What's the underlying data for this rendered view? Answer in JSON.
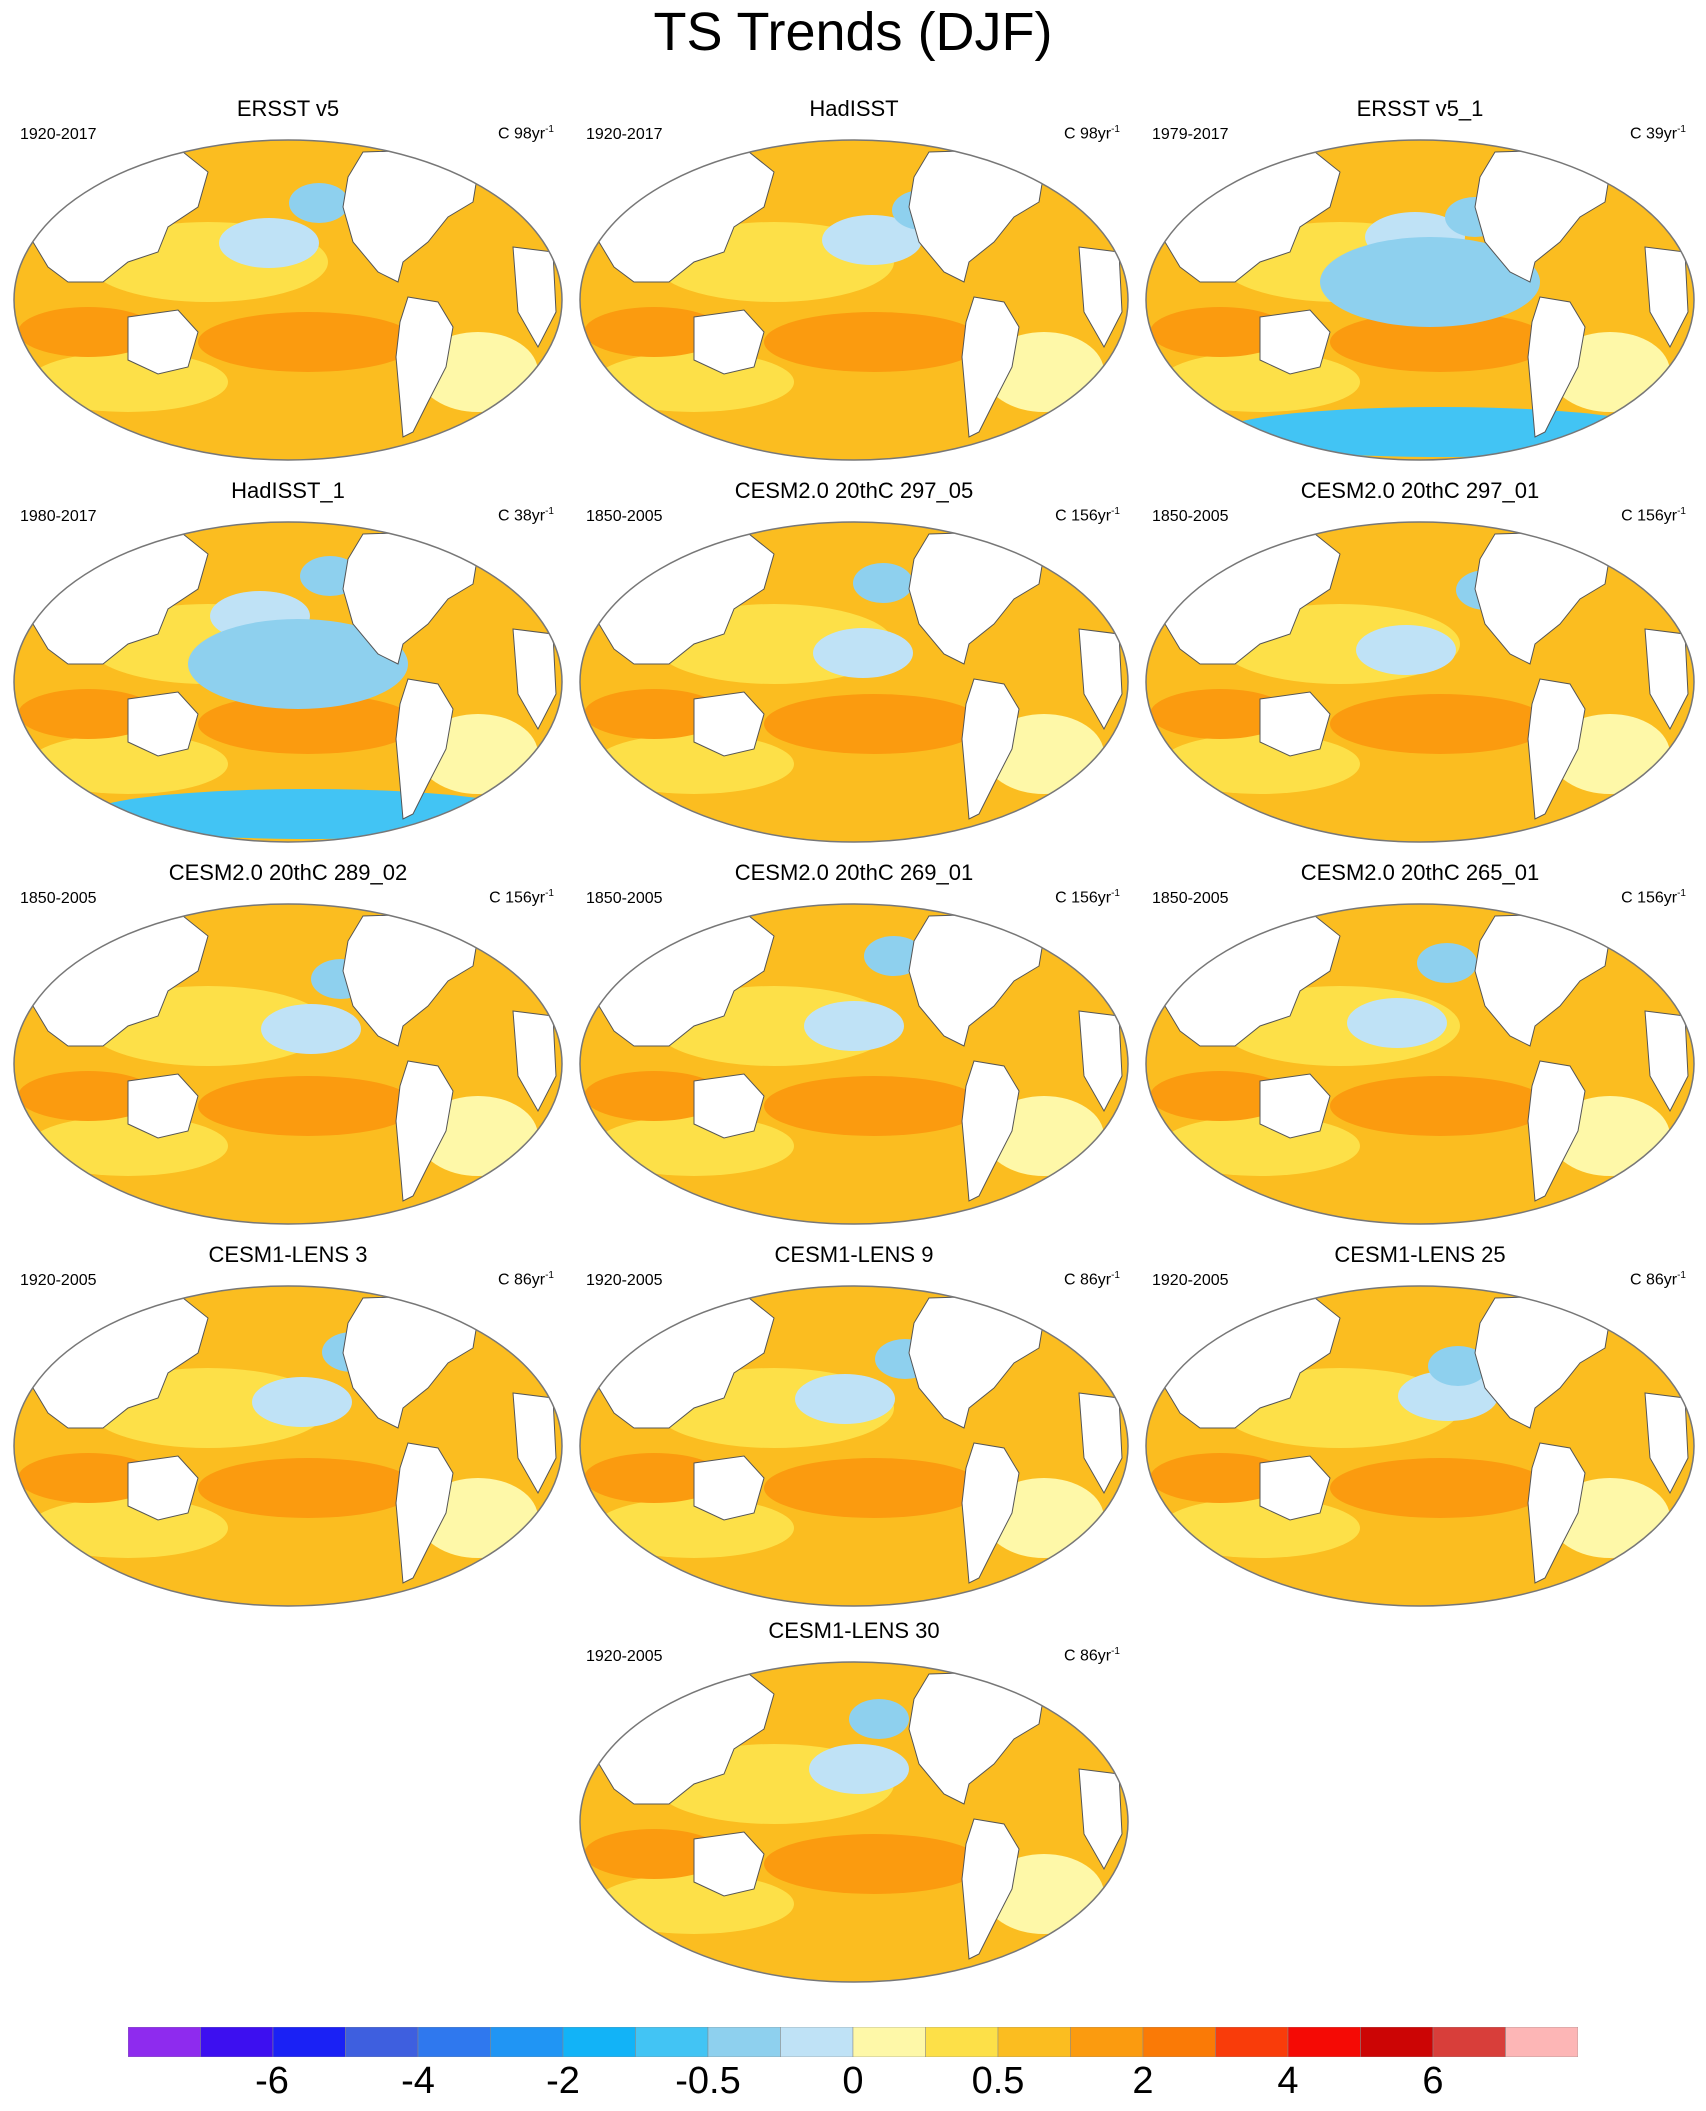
{
  "title": "TS Trends (DJF)",
  "panels": [
    {
      "title": "ERSST v5",
      "period": "1920-2017",
      "units": "C 98yr",
      "exp": "-1"
    },
    {
      "title": "HadISST",
      "period": "1920-2017",
      "units": "C 98yr",
      "exp": "-1"
    },
    {
      "title": "ERSST v5_1",
      "period": "1979-2017",
      "units": "C 39yr",
      "exp": "-1"
    },
    {
      "title": "HadISST_1",
      "period": "1980-2017",
      "units": "C 38yr",
      "exp": "-1"
    },
    {
      "title": "CESM2.0 20thC 297_05",
      "period": "1850-2005",
      "units": "C 156yr",
      "exp": "-1"
    },
    {
      "title": "CESM2.0 20thC 297_01",
      "period": "1850-2005",
      "units": "C 156yr",
      "exp": "-1"
    },
    {
      "title": "CESM2.0 20thC 289_02",
      "period": "1850-2005",
      "units": "C 156yr",
      "exp": "-1"
    },
    {
      "title": "CESM2.0 20thC 269_01",
      "period": "1850-2005",
      "units": "C 156yr",
      "exp": "-1"
    },
    {
      "title": "CESM2.0 20thC 265_01",
      "period": "1850-2005",
      "units": "C 156yr",
      "exp": "-1"
    },
    {
      "title": "CESM1-LENS 3",
      "period": "1920-2005",
      "units": "C 86yr",
      "exp": "-1"
    },
    {
      "title": "CESM1-LENS 9",
      "period": "1920-2005",
      "units": "C 86yr",
      "exp": "-1"
    },
    {
      "title": "CESM1-LENS 25",
      "period": "1920-2005",
      "units": "C 86yr",
      "exp": "-1"
    },
    {
      "title": "CESM1-LENS 30",
      "period": "1920-2005",
      "units": "C 86yr",
      "exp": "-1"
    }
  ],
  "colorbar": {
    "colors": [
      "#8e2bee",
      "#3d0ff0",
      "#1a21f5",
      "#3e5fdf",
      "#2f78ee",
      "#2095f4",
      "#12b3f7",
      "#42c4f4",
      "#8ed0ee",
      "#bfe2f6",
      "#fef8a8",
      "#fde048",
      "#fbbd20",
      "#fb9b0f",
      "#fa7a06",
      "#f93c0a",
      "#f50a05",
      "#cc0505",
      "#d83e3a",
      "#fdb6b6"
    ],
    "labels": [
      "-6",
      "-4",
      "-2",
      "-0.5",
      "0",
      "0.5",
      "2",
      "4",
      "6"
    ]
  }
}
